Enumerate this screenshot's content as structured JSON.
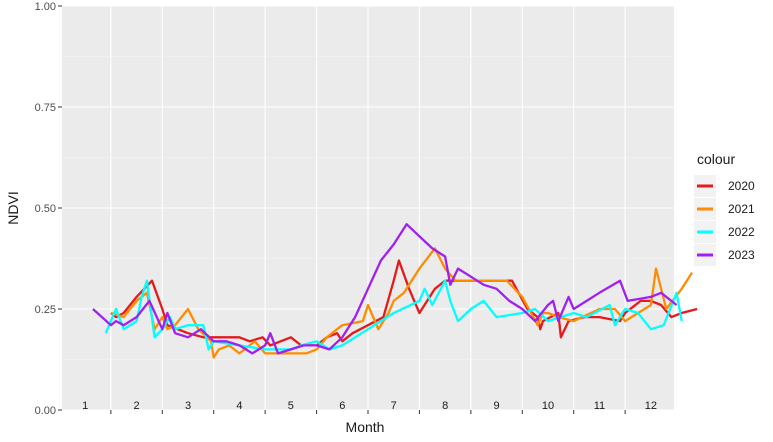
{
  "chart_data": {
    "type": "line",
    "xlabel": "Month",
    "ylabel": "NDVI",
    "ylim": [
      0,
      1
    ],
    "xlim": [
      0.55,
      12.45
    ],
    "y_ticks": [
      "0.00",
      "0.25",
      "0.50",
      "0.75",
      "1.00"
    ],
    "y_tick_values": [
      0,
      0.25,
      0.5,
      0.75,
      1.0
    ],
    "month_labels": [
      "1",
      "2",
      "3",
      "4",
      "5",
      "6",
      "7",
      "8",
      "9",
      "10",
      "11",
      "12"
    ],
    "grid": true,
    "legend": {
      "title": "colour",
      "placement": "right",
      "entries": [
        "2020",
        "2021",
        "2022",
        "2023"
      ]
    },
    "series": [
      {
        "name": "2020",
        "color": "#E41A1C",
        "points": [
          [
            1.5,
            0.24
          ],
          [
            1.6,
            0.23
          ],
          [
            1.75,
            0.24
          ],
          [
            2.0,
            0.28
          ],
          [
            2.3,
            0.32
          ],
          [
            2.5,
            0.25
          ],
          [
            2.6,
            0.21
          ],
          [
            2.8,
            0.2
          ],
          [
            3.0,
            0.19
          ],
          [
            3.3,
            0.18
          ],
          [
            3.6,
            0.18
          ],
          [
            4.0,
            0.18
          ],
          [
            4.2,
            0.17
          ],
          [
            4.45,
            0.18
          ],
          [
            4.6,
            0.16
          ],
          [
            4.8,
            0.17
          ],
          [
            5.0,
            0.18
          ],
          [
            5.2,
            0.16
          ],
          [
            5.5,
            0.16
          ],
          [
            5.7,
            0.18
          ],
          [
            5.9,
            0.19
          ],
          [
            6.0,
            0.17
          ],
          [
            6.2,
            0.19
          ],
          [
            6.5,
            0.21
          ],
          [
            6.8,
            0.23
          ],
          [
            7.0,
            0.32
          ],
          [
            7.1,
            0.37
          ],
          [
            7.3,
            0.3
          ],
          [
            7.5,
            0.24
          ],
          [
            7.8,
            0.3
          ],
          [
            8.0,
            0.32
          ],
          [
            8.5,
            0.32
          ],
          [
            8.8,
            0.32
          ],
          [
            9.0,
            0.32
          ],
          [
            9.3,
            0.32
          ],
          [
            9.6,
            0.25
          ],
          [
            9.8,
            0.23
          ],
          [
            9.85,
            0.2
          ],
          [
            9.9,
            0.22
          ],
          [
            10.2,
            0.24
          ],
          [
            10.25,
            0.18
          ],
          [
            10.4,
            0.22
          ],
          [
            10.7,
            0.23
          ],
          [
            11.0,
            0.23
          ],
          [
            11.4,
            0.22
          ],
          [
            11.5,
            0.24
          ],
          [
            11.8,
            0.27
          ],
          [
            12.0,
            0.27
          ],
          [
            12.2,
            0.26
          ],
          [
            12.4,
            0.23
          ],
          [
            12.6,
            0.24
          ],
          [
            12.9,
            0.25
          ]
        ]
      },
      {
        "name": "2021",
        "color": "#FF8C00",
        "points": [
          [
            1.5,
            0.24
          ],
          [
            1.75,
            0.23
          ],
          [
            2.0,
            0.27
          ],
          [
            2.2,
            0.29
          ],
          [
            2.35,
            0.2
          ],
          [
            2.5,
            0.23
          ],
          [
            2.6,
            0.2
          ],
          [
            2.75,
            0.21
          ],
          [
            3.0,
            0.25
          ],
          [
            3.2,
            0.2
          ],
          [
            3.45,
            0.17
          ],
          [
            3.5,
            0.13
          ],
          [
            3.6,
            0.15
          ],
          [
            3.8,
            0.16
          ],
          [
            4.0,
            0.14
          ],
          [
            4.3,
            0.17
          ],
          [
            4.5,
            0.14
          ],
          [
            5.0,
            0.14
          ],
          [
            5.3,
            0.14
          ],
          [
            5.5,
            0.15
          ],
          [
            5.7,
            0.18
          ],
          [
            5.9,
            0.2
          ],
          [
            6.0,
            0.21
          ],
          [
            6.4,
            0.22
          ],
          [
            6.5,
            0.26
          ],
          [
            6.7,
            0.2
          ],
          [
            6.9,
            0.24
          ],
          [
            7.0,
            0.27
          ],
          [
            7.2,
            0.29
          ],
          [
            7.5,
            0.35
          ],
          [
            7.8,
            0.4
          ],
          [
            8.0,
            0.35
          ],
          [
            8.2,
            0.32
          ],
          [
            8.5,
            0.32
          ],
          [
            8.8,
            0.32
          ],
          [
            9.0,
            0.32
          ],
          [
            9.2,
            0.32
          ],
          [
            9.5,
            0.28
          ],
          [
            9.8,
            0.21
          ],
          [
            9.9,
            0.24
          ],
          [
            10.0,
            0.24
          ],
          [
            10.2,
            0.23
          ],
          [
            10.5,
            0.22
          ],
          [
            11.0,
            0.25
          ],
          [
            11.3,
            0.25
          ],
          [
            11.5,
            0.22
          ],
          [
            12.0,
            0.26
          ],
          [
            12.1,
            0.35
          ],
          [
            12.3,
            0.25
          ],
          [
            12.6,
            0.3
          ],
          [
            12.8,
            0.34
          ]
        ]
      },
      {
        "name": "2022",
        "color": "#00FFFF",
        "points": [
          [
            1.4,
            0.19
          ],
          [
            1.6,
            0.25
          ],
          [
            1.75,
            0.2
          ],
          [
            2.0,
            0.22
          ],
          [
            2.1,
            0.28
          ],
          [
            2.2,
            0.32
          ],
          [
            2.35,
            0.18
          ],
          [
            2.5,
            0.2
          ],
          [
            2.65,
            0.23
          ],
          [
            2.75,
            0.2
          ],
          [
            3.0,
            0.21
          ],
          [
            3.3,
            0.21
          ],
          [
            3.4,
            0.15
          ],
          [
            3.5,
            0.17
          ],
          [
            4.0,
            0.16
          ],
          [
            4.5,
            0.15
          ],
          [
            5.0,
            0.15
          ],
          [
            5.2,
            0.16
          ],
          [
            5.5,
            0.17
          ],
          [
            5.75,
            0.15
          ],
          [
            6.0,
            0.16
          ],
          [
            6.5,
            0.2
          ],
          [
            7.0,
            0.24
          ],
          [
            7.5,
            0.27
          ],
          [
            7.6,
            0.3
          ],
          [
            7.75,
            0.26
          ],
          [
            8.0,
            0.32
          ],
          [
            8.1,
            0.27
          ],
          [
            8.25,
            0.22
          ],
          [
            8.5,
            0.25
          ],
          [
            8.75,
            0.27
          ],
          [
            9.0,
            0.23
          ],
          [
            9.5,
            0.24
          ],
          [
            9.75,
            0.25
          ],
          [
            10.0,
            0.22
          ],
          [
            10.5,
            0.24
          ],
          [
            10.75,
            0.23
          ],
          [
            11.2,
            0.26
          ],
          [
            11.3,
            0.21
          ],
          [
            11.5,
            0.25
          ],
          [
            11.75,
            0.24
          ],
          [
            12.0,
            0.2
          ],
          [
            12.25,
            0.21
          ],
          [
            12.5,
            0.29
          ],
          [
            12.6,
            0.22
          ]
        ]
      },
      {
        "name": "2023",
        "color": "#A020F0",
        "points": [
          [
            1.15,
            0.25
          ],
          [
            1.5,
            0.21
          ],
          [
            1.6,
            0.22
          ],
          [
            1.75,
            0.21
          ],
          [
            2.0,
            0.23
          ],
          [
            2.25,
            0.27
          ],
          [
            2.5,
            0.2
          ],
          [
            2.6,
            0.24
          ],
          [
            2.75,
            0.19
          ],
          [
            3.0,
            0.18
          ],
          [
            3.25,
            0.2
          ],
          [
            3.5,
            0.17
          ],
          [
            3.75,
            0.17
          ],
          [
            4.0,
            0.16
          ],
          [
            4.25,
            0.14
          ],
          [
            4.5,
            0.16
          ],
          [
            4.6,
            0.19
          ],
          [
            4.75,
            0.14
          ],
          [
            5.0,
            0.15
          ],
          [
            5.25,
            0.16
          ],
          [
            5.5,
            0.16
          ],
          [
            5.75,
            0.15
          ],
          [
            6.0,
            0.18
          ],
          [
            6.25,
            0.23
          ],
          [
            6.5,
            0.3
          ],
          [
            6.75,
            0.37
          ],
          [
            7.0,
            0.41
          ],
          [
            7.25,
            0.46
          ],
          [
            7.5,
            0.43
          ],
          [
            7.75,
            0.4
          ],
          [
            8.0,
            0.38
          ],
          [
            8.1,
            0.31
          ],
          [
            8.25,
            0.35
          ],
          [
            8.5,
            0.33
          ],
          [
            8.75,
            0.31
          ],
          [
            9.0,
            0.3
          ],
          [
            9.25,
            0.27
          ],
          [
            9.5,
            0.25
          ],
          [
            9.75,
            0.22
          ],
          [
            10.0,
            0.26
          ],
          [
            10.1,
            0.27
          ],
          [
            10.2,
            0.22
          ],
          [
            10.4,
            0.28
          ],
          [
            10.5,
            0.25
          ],
          [
            11.0,
            0.29
          ],
          [
            11.4,
            0.32
          ],
          [
            11.55,
            0.27
          ],
          [
            12.0,
            0.28
          ],
          [
            12.2,
            0.29
          ],
          [
            12.5,
            0.26
          ]
        ]
      }
    ]
  }
}
